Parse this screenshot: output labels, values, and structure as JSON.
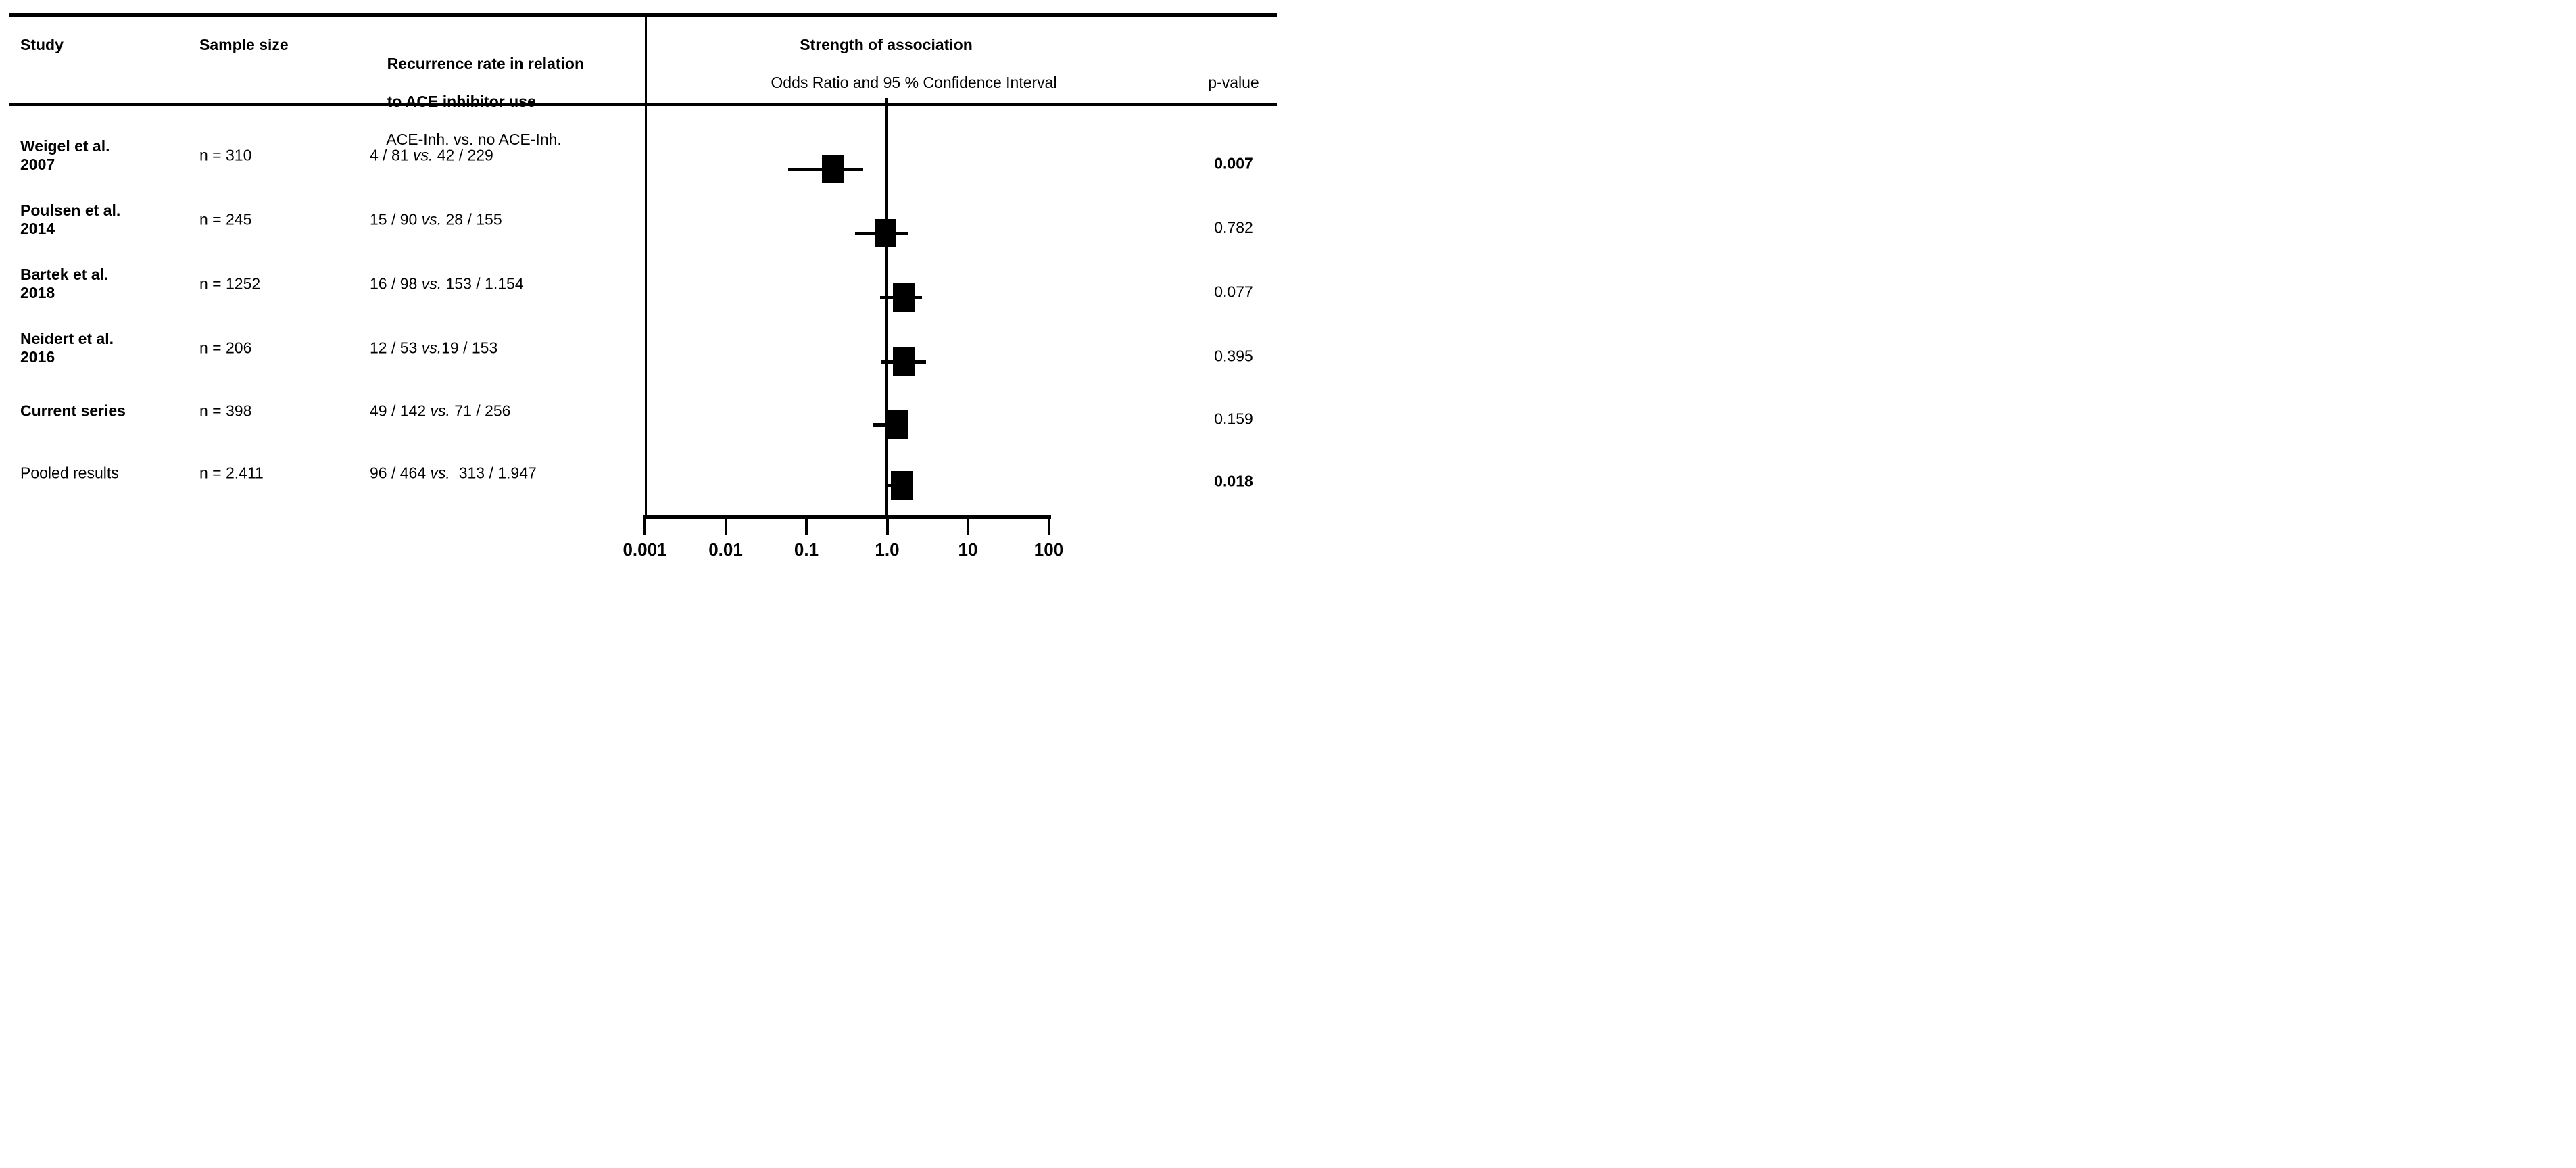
{
  "figure": {
    "header": {
      "study": "Study",
      "sample_size": "Sample size",
      "recurrence_line1": "Recurrence rate in relation",
      "recurrence_line2": "to ACE inhibitor use",
      "recurrence_line3": "ACE-Inh. vs. no ACE-Inh.",
      "association_title": "Strength of association",
      "association_subtitle": "Odds Ratio and 95 % Confidence Interval",
      "p_value": "p-value"
    },
    "studies": [
      {
        "name_line1": "Weigel et al.",
        "name_line2": "2007",
        "sample_size": "n = 310",
        "recurrence": {
          "left": "4 / 81 ",
          "vs": "vs.",
          "right": " 42 / 229"
        },
        "p_value": "0.007"
      },
      {
        "name_line1": "Poulsen et al.",
        "name_line2": "2014",
        "sample_size": "n = 245",
        "recurrence": {
          "left": "15 / 90 ",
          "vs": "vs.",
          "right": " 28 / 155"
        },
        "p_value": "0.782"
      },
      {
        "name_line1": "Bartek et al.",
        "name_line2": "2018",
        "sample_size": "n = 1252",
        "recurrence": {
          "left": "16 / 98 ",
          "vs": "vs.",
          "right": " 153 / 1.154"
        },
        "p_value": "0.077"
      },
      {
        "name_line1": "Neidert et al.",
        "name_line2": "2016",
        "sample_size": "n = 206",
        "recurrence": {
          "left": "12 / 53 ",
          "vs": "vs.",
          "right": "19 / 153"
        },
        "p_value": "0.395"
      },
      {
        "name_line1": "Current series",
        "name_line2": "",
        "sample_size": "n = 398",
        "recurrence": {
          "left": "49 / 142 ",
          "vs": "vs.",
          "right": " 71 / 256"
        },
        "p_value": "0.159"
      },
      {
        "name_line1": "Pooled results",
        "name_line2": "",
        "sample_size": "n = 2.411",
        "recurrence": {
          "left": "96 / 464 ",
          "vs": "vs.",
          "right": "  313 / 1.947"
        },
        "p_value": "0.018"
      }
    ],
    "chart_data": {
      "type": "forest",
      "title": "Strength of association",
      "xlabel": "Odds Ratio and 95 % Confidence Interval",
      "x_axis": {
        "scale": "log",
        "range": [
          0.001,
          100
        ],
        "reference_line": 1.0,
        "ticks": [
          {
            "label": "0.001",
            "value": 0.001
          },
          {
            "label": "0.01",
            "value": 0.01
          },
          {
            "label": "0.1",
            "value": 0.1
          },
          {
            "label": "1.0",
            "value": 1.0
          },
          {
            "label": "10",
            "value": 10
          },
          {
            "label": "100",
            "value": 100
          }
        ]
      },
      "points": [
        {
          "study": "Weigel et al. 2007",
          "or": 0.21,
          "ci_low": 0.06,
          "ci_high": 0.5,
          "p": "0.007"
        },
        {
          "study": "Poulsen et al. 2014",
          "or": 0.95,
          "ci_low": 0.4,
          "ci_high": 1.85,
          "p": "0.782"
        },
        {
          "study": "Bartek et al. 2018",
          "or": 1.6,
          "ci_low": 0.82,
          "ci_high": 2.7,
          "p": "0.077"
        },
        {
          "study": "Neidert et al. 2016",
          "or": 1.6,
          "ci_low": 0.83,
          "ci_high": 3.0,
          "p": "0.395"
        },
        {
          "study": "Current series",
          "or": 1.33,
          "ci_low": 0.68,
          "ci_high": 1.8,
          "p": "0.159"
        },
        {
          "study": "Pooled results",
          "or": 1.5,
          "ci_low": 1.03,
          "ci_high": 1.95,
          "p": "0.018"
        }
      ],
      "marker": "black-square",
      "grid": false,
      "legend": "none"
    },
    "colors": {
      "ink": "#000000",
      "background": "#ffffff"
    }
  }
}
